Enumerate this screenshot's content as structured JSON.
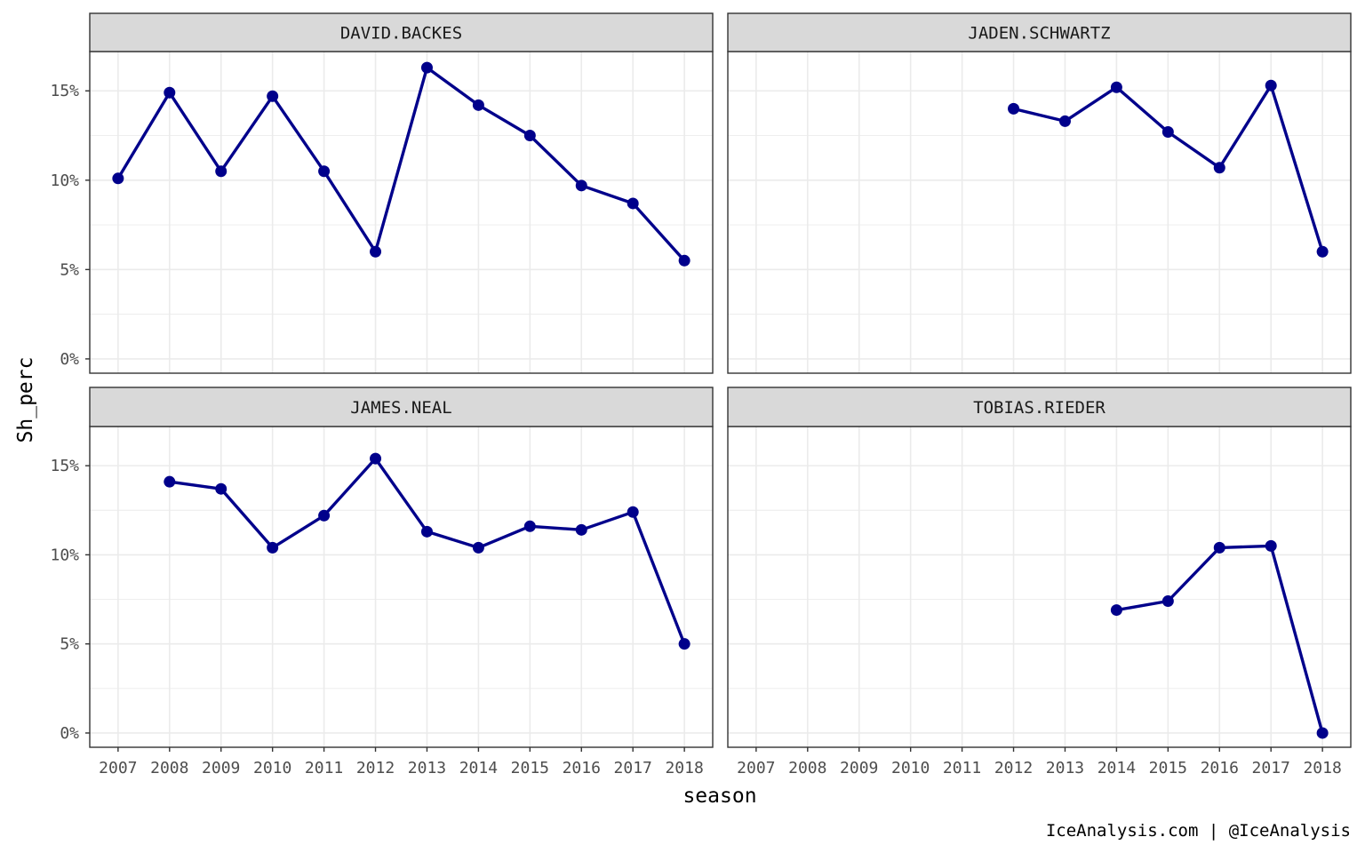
{
  "chart_data": {
    "type": "line",
    "facet_layout": "2x2",
    "xlabel": "season",
    "ylabel": "Sh_perc",
    "caption": "IceAnalysis.com | @IceAnalysis",
    "x_ticks": [
      "2007",
      "2008",
      "2009",
      "2010",
      "2011",
      "2012",
      "2013",
      "2014",
      "2015",
      "2016",
      "2017",
      "2018"
    ],
    "y_ticks": [
      0,
      5,
      10,
      15
    ],
    "y_tick_labels": [
      "0%",
      "5%",
      "10%",
      "15%"
    ],
    "ylim": [
      -0.8,
      17.2
    ],
    "xlim": [
      2006.45,
      2018.55
    ],
    "grid": true,
    "colors": {
      "series": "#00008B",
      "strip_fill": "#D9D9D9",
      "grid": "#EBEBEB",
      "border": "#333333"
    },
    "panels": [
      {
        "name": "DAVID.BACKES",
        "x": [
          2007,
          2008,
          2009,
          2010,
          2011,
          2012,
          2013,
          2014,
          2015,
          2016,
          2017,
          2018
        ],
        "values": [
          10.1,
          14.9,
          10.5,
          14.7,
          10.5,
          6.0,
          16.3,
          14.2,
          12.5,
          9.7,
          8.7,
          5.5
        ]
      },
      {
        "name": "JADEN.SCHWARTZ",
        "x": [
          2012,
          2013,
          2014,
          2015,
          2016,
          2017,
          2018
        ],
        "values": [
          14.0,
          13.3,
          15.2,
          12.7,
          10.7,
          15.3,
          6.0
        ]
      },
      {
        "name": "JAMES.NEAL",
        "x": [
          2008,
          2009,
          2010,
          2011,
          2012,
          2013,
          2014,
          2015,
          2016,
          2017,
          2018
        ],
        "values": [
          14.1,
          13.7,
          10.4,
          12.2,
          15.4,
          11.3,
          10.4,
          11.6,
          11.4,
          12.4,
          5.0
        ]
      },
      {
        "name": "TOBIAS.RIEDER",
        "x": [
          2014,
          2015,
          2016,
          2017,
          2018
        ],
        "values": [
          6.9,
          7.4,
          10.4,
          10.5,
          0.0
        ]
      }
    ]
  }
}
